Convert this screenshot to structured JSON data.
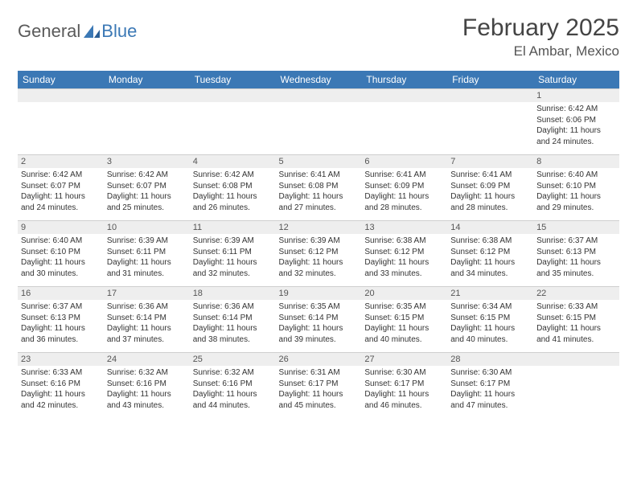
{
  "brand": {
    "part1": "General",
    "part2": "Blue"
  },
  "header": {
    "month_title": "February 2025",
    "location": "El Ambar, Mexico"
  },
  "colors": {
    "header_bg": "#3b78b5",
    "header_fg": "#ffffff",
    "daynum_bg": "#eeeeee",
    "border": "#cfcfcf"
  },
  "weekdays": [
    "Sunday",
    "Monday",
    "Tuesday",
    "Wednesday",
    "Thursday",
    "Friday",
    "Saturday"
  ],
  "weeks": [
    [
      null,
      null,
      null,
      null,
      null,
      null,
      {
        "n": "1",
        "sunrise": "6:42 AM",
        "sunset": "6:06 PM",
        "dl": "11 hours and 24 minutes."
      }
    ],
    [
      {
        "n": "2",
        "sunrise": "6:42 AM",
        "sunset": "6:07 PM",
        "dl": "11 hours and 24 minutes."
      },
      {
        "n": "3",
        "sunrise": "6:42 AM",
        "sunset": "6:07 PM",
        "dl": "11 hours and 25 minutes."
      },
      {
        "n": "4",
        "sunrise": "6:42 AM",
        "sunset": "6:08 PM",
        "dl": "11 hours and 26 minutes."
      },
      {
        "n": "5",
        "sunrise": "6:41 AM",
        "sunset": "6:08 PM",
        "dl": "11 hours and 27 minutes."
      },
      {
        "n": "6",
        "sunrise": "6:41 AM",
        "sunset": "6:09 PM",
        "dl": "11 hours and 28 minutes."
      },
      {
        "n": "7",
        "sunrise": "6:41 AM",
        "sunset": "6:09 PM",
        "dl": "11 hours and 28 minutes."
      },
      {
        "n": "8",
        "sunrise": "6:40 AM",
        "sunset": "6:10 PM",
        "dl": "11 hours and 29 minutes."
      }
    ],
    [
      {
        "n": "9",
        "sunrise": "6:40 AM",
        "sunset": "6:10 PM",
        "dl": "11 hours and 30 minutes."
      },
      {
        "n": "10",
        "sunrise": "6:39 AM",
        "sunset": "6:11 PM",
        "dl": "11 hours and 31 minutes."
      },
      {
        "n": "11",
        "sunrise": "6:39 AM",
        "sunset": "6:11 PM",
        "dl": "11 hours and 32 minutes."
      },
      {
        "n": "12",
        "sunrise": "6:39 AM",
        "sunset": "6:12 PM",
        "dl": "11 hours and 32 minutes."
      },
      {
        "n": "13",
        "sunrise": "6:38 AM",
        "sunset": "6:12 PM",
        "dl": "11 hours and 33 minutes."
      },
      {
        "n": "14",
        "sunrise": "6:38 AM",
        "sunset": "6:12 PM",
        "dl": "11 hours and 34 minutes."
      },
      {
        "n": "15",
        "sunrise": "6:37 AM",
        "sunset": "6:13 PM",
        "dl": "11 hours and 35 minutes."
      }
    ],
    [
      {
        "n": "16",
        "sunrise": "6:37 AM",
        "sunset": "6:13 PM",
        "dl": "11 hours and 36 minutes."
      },
      {
        "n": "17",
        "sunrise": "6:36 AM",
        "sunset": "6:14 PM",
        "dl": "11 hours and 37 minutes."
      },
      {
        "n": "18",
        "sunrise": "6:36 AM",
        "sunset": "6:14 PM",
        "dl": "11 hours and 38 minutes."
      },
      {
        "n": "19",
        "sunrise": "6:35 AM",
        "sunset": "6:14 PM",
        "dl": "11 hours and 39 minutes."
      },
      {
        "n": "20",
        "sunrise": "6:35 AM",
        "sunset": "6:15 PM",
        "dl": "11 hours and 40 minutes."
      },
      {
        "n": "21",
        "sunrise": "6:34 AM",
        "sunset": "6:15 PM",
        "dl": "11 hours and 40 minutes."
      },
      {
        "n": "22",
        "sunrise": "6:33 AM",
        "sunset": "6:15 PM",
        "dl": "11 hours and 41 minutes."
      }
    ],
    [
      {
        "n": "23",
        "sunrise": "6:33 AM",
        "sunset": "6:16 PM",
        "dl": "11 hours and 42 minutes."
      },
      {
        "n": "24",
        "sunrise": "6:32 AM",
        "sunset": "6:16 PM",
        "dl": "11 hours and 43 minutes."
      },
      {
        "n": "25",
        "sunrise": "6:32 AM",
        "sunset": "6:16 PM",
        "dl": "11 hours and 44 minutes."
      },
      {
        "n": "26",
        "sunrise": "6:31 AM",
        "sunset": "6:17 PM",
        "dl": "11 hours and 45 minutes."
      },
      {
        "n": "27",
        "sunrise": "6:30 AM",
        "sunset": "6:17 PM",
        "dl": "11 hours and 46 minutes."
      },
      {
        "n": "28",
        "sunrise": "6:30 AM",
        "sunset": "6:17 PM",
        "dl": "11 hours and 47 minutes."
      },
      null
    ]
  ],
  "labels": {
    "sunrise": "Sunrise:",
    "sunset": "Sunset:",
    "daylight": "Daylight:"
  }
}
